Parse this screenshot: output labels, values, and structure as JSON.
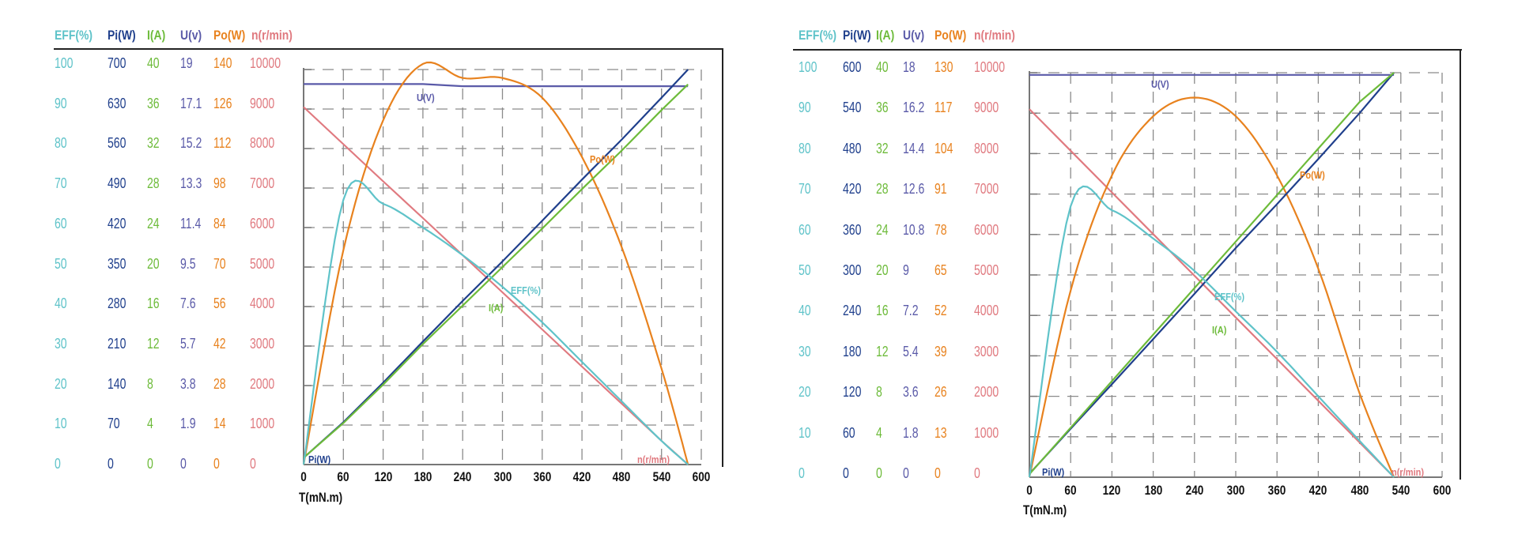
{
  "colors": {
    "eff": "#5fc3c9",
    "pi": "#1f3f8c",
    "i": "#6dbb3a",
    "u": "#5a5aa8",
    "po": "#e8821e",
    "n": "#e07a80",
    "grid": "#8a8a8a",
    "axis": "#222222"
  },
  "left_panel": {
    "headers": [
      "EFF(%)",
      "Pi(W)",
      "I(A)",
      "U(v)",
      "Po(W)",
      "n(r/min)"
    ],
    "table": {
      "eff": [
        "100",
        "90",
        "80",
        "70",
        "60",
        "50",
        "40",
        "30",
        "20",
        "10",
        "0"
      ],
      "pi": [
        "700",
        "630",
        "560",
        "490",
        "420",
        "350",
        "280",
        "210",
        "140",
        "70",
        "0"
      ],
      "i": [
        "40",
        "36",
        "32",
        "28",
        "24",
        "20",
        "16",
        "12",
        "8",
        "4",
        "0"
      ],
      "u": [
        "19",
        "17.1",
        "15.2",
        "13.3",
        "11.4",
        "9.5",
        "7.6",
        "5.7",
        "3.8",
        "1.9",
        "0"
      ],
      "po": [
        "140",
        "126",
        "112",
        "98",
        "84",
        "70",
        "56",
        "42",
        "28",
        "14",
        "0"
      ],
      "n": [
        "10000",
        "9000",
        "8000",
        "7000",
        "6000",
        "5000",
        "4000",
        "3000",
        "2000",
        "1000",
        "0"
      ]
    },
    "x_ticks": [
      "0",
      "60",
      "120",
      "180",
      "240",
      "300",
      "360",
      "420",
      "480",
      "540",
      "600"
    ],
    "x_label": "T(mN.m)",
    "curve_labels": {
      "u": "U(V)",
      "po": "Po(W)",
      "eff": "EFF(%)",
      "i": "I(A)",
      "pi": "Pi(W)",
      "n": "n(r/min)"
    }
  },
  "right_panel": {
    "headers": [
      "EFF(%)",
      "Pi(W)",
      "I(A)",
      "U(v)",
      "Po(W)",
      "n(r/min)"
    ],
    "table": {
      "eff": [
        "100",
        "90",
        "80",
        "70",
        "60",
        "50",
        "40",
        "30",
        "20",
        "10",
        "0"
      ],
      "pi": [
        "600",
        "540",
        "480",
        "420",
        "360",
        "300",
        "240",
        "180",
        "120",
        "60",
        "0"
      ],
      "i": [
        "40",
        "36",
        "32",
        "28",
        "24",
        "20",
        "16",
        "12",
        "8",
        "4",
        "0"
      ],
      "u": [
        "18",
        "16.2",
        "14.4",
        "12.6",
        "10.8",
        "9",
        "7.2",
        "5.4",
        "3.6",
        "1.8",
        "0"
      ],
      "po": [
        "130",
        "117",
        "104",
        "91",
        "78",
        "65",
        "52",
        "39",
        "26",
        "13",
        "0"
      ],
      "n": [
        "10000",
        "9000",
        "8000",
        "7000",
        "6000",
        "5000",
        "4000",
        "3000",
        "2000",
        "1000",
        "0"
      ]
    },
    "x_ticks": [
      "0",
      "60",
      "120",
      "180",
      "240",
      "300",
      "360",
      "420",
      "480",
      "540",
      "600"
    ],
    "x_label": "T(mN.m)",
    "curve_labels": {
      "u": "U(V)",
      "po": "Po(W)",
      "eff": "EFF(%)",
      "i": "I(A)",
      "pi": "Pi(W)",
      "n": "n(r/min)"
    }
  },
  "chart_data": [
    {
      "type": "line",
      "title": "Motor performance curve (left)",
      "xlabel": "T(mN.m)",
      "xlim": [
        0,
        600
      ],
      "x_ticks": [
        0,
        60,
        120,
        180,
        240,
        300,
        360,
        420,
        480,
        540,
        600
      ],
      "grid": true,
      "y_axes": {
        "EFF(%)": [
          0,
          100
        ],
        "Pi(W)": [
          0,
          700
        ],
        "I(A)": [
          0,
          40
        ],
        "U(v)": [
          0,
          19
        ],
        "Po(W)": [
          0,
          140
        ],
        "n(r/min)": [
          0,
          10000
        ]
      },
      "x": [
        0,
        60,
        120,
        180,
        240,
        300,
        360,
        420,
        480,
        540,
        580
      ],
      "series": [
        {
          "name": "U(V)",
          "unit": "V",
          "values": [
            18.3,
            18.3,
            18.3,
            18.3,
            18.2,
            18.2,
            18.2,
            18.2,
            18.2,
            18.2,
            18.2
          ]
        },
        {
          "name": "n(r/min)",
          "unit": "r/min",
          "values": [
            9050,
            8110,
            7170,
            6240,
            5300,
            4360,
            3420,
            2480,
            1540,
            600,
            0
          ]
        },
        {
          "name": "Po(W)",
          "unit": "W",
          "values": [
            0,
            76,
            122,
            142,
            137,
            137,
            130,
            109,
            77,
            34,
            0
          ]
        },
        {
          "name": "Pi(W)",
          "unit": "W",
          "values": [
            12,
            75,
            145,
            218,
            290,
            360,
            432,
            505,
            576,
            650,
            700
          ]
        },
        {
          "name": "I(A)",
          "unit": "A",
          "values": [
            0.7,
            4.2,
            8.1,
            12.2,
            16.1,
            20.0,
            23.9,
            27.9,
            31.8,
            35.9,
            38.5
          ]
        },
        {
          "name": "EFF(%)",
          "unit": "%",
          "values": [
            0,
            67,
            66,
            60,
            53,
            45,
            36,
            26,
            16,
            6,
            0
          ]
        }
      ],
      "annotations": [
        "U(V)",
        "Po(W)",
        "EFF(%)",
        "I(A)",
        "Pi(W)",
        "n(r/min)"
      ]
    },
    {
      "type": "line",
      "title": "Motor performance curve (right)",
      "xlabel": "T(mN.m)",
      "xlim": [
        0,
        600
      ],
      "x_ticks": [
        0,
        60,
        120,
        180,
        240,
        300,
        360,
        420,
        480,
        540,
        600
      ],
      "grid": true,
      "y_axes": {
        "EFF(%)": [
          0,
          100
        ],
        "Pi(W)": [
          0,
          600
        ],
        "I(A)": [
          0,
          40
        ],
        "U(v)": [
          0,
          18
        ],
        "Po(W)": [
          0,
          130
        ],
        "n(r/min)": [
          0,
          10000
        ]
      },
      "x": [
        0,
        60,
        120,
        180,
        240,
        300,
        360,
        420,
        480,
        530
      ],
      "series": [
        {
          "name": "U(V)",
          "unit": "V",
          "values": [
            17.9,
            17.9,
            17.9,
            17.9,
            17.9,
            17.9,
            17.9,
            17.9,
            17.9,
            17.9
          ]
        },
        {
          "name": "n(r/min)",
          "unit": "r/min",
          "values": [
            9100,
            8070,
            7040,
            6010,
            4980,
            3950,
            2920,
            1890,
            860,
            0
          ]
        },
        {
          "name": "Po(W)",
          "unit": "W",
          "values": [
            0,
            60,
            97,
            116,
            122,
            116,
            97,
            67,
            27,
            0
          ]
        },
        {
          "name": "Pi(W)",
          "unit": "W",
          "values": [
            5,
            72,
            138,
            205,
            272,
            340,
            405,
            472,
            540,
            600
          ]
        },
        {
          "name": "I(A)",
          "unit": "A",
          "values": [
            0.3,
            4.9,
            9.5,
            14.1,
            18.7,
            23.3,
            27.9,
            32.5,
            37.1,
            40
          ]
        },
        {
          "name": "EFF(%)",
          "unit": "%",
          "values": [
            0,
            67,
            66,
            59,
            51,
            41,
            31,
            20,
            9,
            0
          ]
        }
      ],
      "annotations": [
        "U(V)",
        "Po(W)",
        "EFF(%)",
        "I(A)",
        "Pi(W)",
        "n(r/min)"
      ]
    }
  ]
}
